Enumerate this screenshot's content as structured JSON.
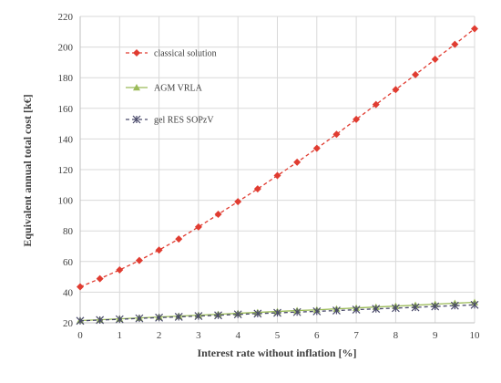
{
  "chart_data": {
    "type": "line",
    "title": "",
    "xlabel": "Interest rate without inflation [%]",
    "ylabel": "Equivalent annual total cost [k€]",
    "xlim": [
      0,
      10
    ],
    "ylim": [
      20,
      220
    ],
    "x_ticks": [
      0,
      1,
      2,
      3,
      4,
      5,
      6,
      7,
      8,
      9,
      10
    ],
    "y_ticks": [
      20,
      40,
      60,
      80,
      100,
      120,
      140,
      160,
      180,
      200,
      220
    ],
    "grid": true,
    "legend_position": "top-left",
    "x": [
      0,
      0.5,
      1,
      1.5,
      2,
      2.5,
      3,
      3.5,
      4,
      4.5,
      5,
      5.5,
      6,
      6.5,
      7,
      7.5,
      8,
      8.5,
      9,
      9.5,
      10
    ],
    "series": [
      {
        "name": "classical solution",
        "color": "#e03c31",
        "marker": "diamond",
        "line_style": "dashed",
        "values": [
          43.5,
          48.8,
          54.5,
          60.7,
          67.5,
          74.7,
          82.6,
          90.8,
          99.1,
          107.4,
          116.1,
          124.8,
          133.9,
          143.1,
          152.8,
          162.5,
          172.2,
          182.0,
          192.0,
          201.8,
          212.0
        ]
      },
      {
        "name": "AGM VRLA",
        "color": "#9bbb59",
        "marker": "triangle",
        "line_style": "solid",
        "values": [
          21.5,
          22.0,
          22.6,
          23.2,
          23.8,
          24.4,
          25.0,
          25.6,
          26.2,
          26.8,
          27.4,
          28.0,
          28.5,
          29.1,
          29.7,
          30.3,
          30.9,
          31.5,
          32.2,
          32.8,
          33.4
        ]
      },
      {
        "name": "gel RES SOPzV",
        "color": "#4a4a6a",
        "marker": "star",
        "line_style": "dashed",
        "values": [
          21.3,
          21.8,
          22.3,
          22.9,
          23.4,
          23.9,
          24.4,
          24.9,
          25.5,
          26.0,
          26.5,
          27.0,
          27.5,
          28.0,
          28.6,
          29.1,
          29.6,
          30.1,
          30.7,
          31.2,
          31.7
        ]
      }
    ]
  }
}
